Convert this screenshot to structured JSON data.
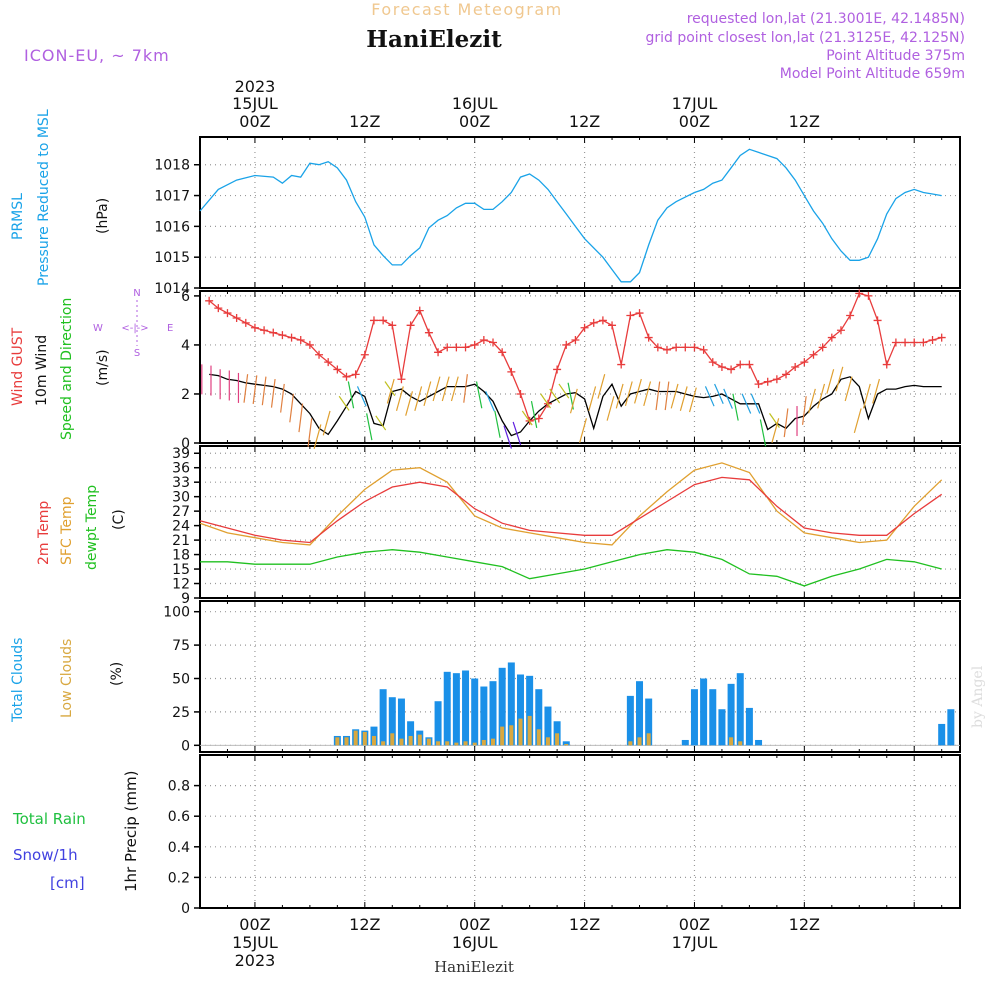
{
  "header": {
    "title": "Forecast Meteogram",
    "station": "HaniElezit",
    "model": "ICON-EU, ~ 7km",
    "requested": "requested lon,lat (21.3001E, 42.1485N)",
    "grid_point": "grid point closest lon,lat (21.3125E, 42.125N)",
    "point_altitude": "Point Altitude 375m",
    "model_altitude": "Model Point Altitude 659m",
    "footer_station": "HaniElezit",
    "watermark": "by Angel"
  },
  "time_axis": {
    "top_labels": [
      {
        "time": "00Z",
        "date": "15JUL",
        "year": "2023"
      },
      {
        "time": "12Z"
      },
      {
        "time": "00Z",
        "date": "16JUL"
      },
      {
        "time": "12Z"
      },
      {
        "time": "00Z",
        "date": "17JUL"
      },
      {
        "time": "12Z"
      }
    ],
    "bottom_labels": [
      {
        "time": "00Z",
        "date": "15JUL",
        "year": "2023"
      },
      {
        "time": "12Z"
      },
      {
        "time": "00Z",
        "date": "16JUL"
      },
      {
        "time": "12Z"
      },
      {
        "time": "00Z",
        "date": "17JUL"
      },
      {
        "time": "12Z"
      }
    ]
  },
  "panels": {
    "pressure": {
      "label1": "PRMSL",
      "label2": "Pressure Reduced to MSL",
      "unit": "(hPa)"
    },
    "wind": {
      "label_gust": "Wind GUST",
      "label_wind": "10m Wind",
      "label_dir": "Speed and Direction",
      "unit": "(m/s)",
      "compass_w": "W",
      "compass_e": "E",
      "compass_n": "N",
      "compass_s": "S",
      "compass_mid": "<-|->"
    },
    "temp": {
      "label_2m": "2m Temp",
      "label_sfc": "SFC Temp",
      "label_dew": "dewpt Temp",
      "unit": "(C)"
    },
    "clouds": {
      "label_total": "Total Clouds",
      "label_low": "Low Clouds",
      "unit": "(%)"
    },
    "precip": {
      "label_rain": "Total  Rain",
      "label_snow": "Snow/1h",
      "label_cm": "[cm]",
      "unit": "1hr Precip (mm)"
    }
  },
  "colors": {
    "pressure": "#1aa3e8",
    "gust": "#e83c3c",
    "wind": "#000000",
    "temp2m": "#e83c3c",
    "sfc": "#e0a030",
    "dew": "#20c020",
    "cloud_total": "#1a90e8",
    "cloud_low": "#d8a840",
    "title": "#f0c890",
    "purple": "#b060e0",
    "rain": "#20c040",
    "snow": "#4040e0"
  },
  "chart_data": [
    {
      "type": "line",
      "title": "PRMSL Pressure Reduced to MSL",
      "ylabel": "(hPa)",
      "x_unit": "hours since 2023-07-15 00Z",
      "ylim": [
        1014,
        1018.9
      ],
      "yticks": [
        1014,
        1015,
        1016,
        1017,
        1018
      ],
      "series": [
        {
          "name": "PRMSL",
          "x": [
            -6,
            -4,
            -2,
            0,
            2,
            3,
            4,
            5,
            6,
            7,
            8,
            9,
            10,
            11,
            12,
            13,
            14,
            15,
            16,
            17,
            18,
            19,
            20,
            21,
            22,
            23,
            24,
            25,
            26,
            27,
            28,
            29,
            30,
            31,
            32,
            33,
            34,
            35,
            36,
            38,
            39,
            40,
            41,
            42,
            43,
            44,
            45,
            46,
            47,
            48,
            49,
            50,
            51,
            52,
            53,
            54,
            55,
            56,
            57,
            58,
            59,
            60,
            61,
            62,
            63,
            64,
            65,
            66,
            67,
            68,
            69,
            70,
            71,
            72,
            73,
            74,
            75
          ],
          "values": [
            1016.5,
            1017.2,
            1017.5,
            1017.65,
            1017.6,
            1017.4,
            1017.65,
            1017.6,
            1018.05,
            1018.0,
            1018.1,
            1017.9,
            1017.5,
            1016.8,
            1016.3,
            1015.4,
            1015.05,
            1014.75,
            1014.75,
            1015.05,
            1015.3,
            1015.95,
            1016.2,
            1016.35,
            1016.6,
            1016.75,
            1016.75,
            1016.55,
            1016.55,
            1016.8,
            1017.1,
            1017.6,
            1017.7,
            1017.5,
            1017.2,
            1016.8,
            1016.4,
            1016.0,
            1015.6,
            1015.0,
            1014.6,
            1014.2,
            1014.2,
            1014.5,
            1015.4,
            1016.2,
            1016.6,
            1016.8,
            1016.95,
            1017.1,
            1017.2,
            1017.4,
            1017.5,
            1017.9,
            1018.3,
            1018.5,
            1018.4,
            1018.3,
            1018.2,
            1017.9,
            1017.5,
            1017.0,
            1016.5,
            1016.1,
            1015.6,
            1015.2,
            1014.9,
            1014.9,
            1015.0,
            1015.6,
            1016.4,
            1016.9,
            1017.1,
            1017.2,
            1017.1,
            1017.05,
            1017.0
          ]
        }
      ]
    },
    {
      "type": "line",
      "title": "Wind GUST / 10m Wind Speed and Direction",
      "ylabel": "(m/s)",
      "x_unit": "hours since 2023-07-15 00Z",
      "ylim": [
        0,
        6.2
      ],
      "yticks": [
        0,
        2,
        4,
        6
      ],
      "series": [
        {
          "name": "Wind GUST",
          "x": [
            -5,
            -4,
            -3,
            -2,
            -1,
            0,
            1,
            2,
            3,
            4,
            5,
            6,
            7,
            8,
            9,
            10,
            11,
            12,
            13,
            14,
            15,
            16,
            17,
            18,
            19,
            20,
            21,
            22,
            23,
            24,
            25,
            26,
            27,
            28,
            29,
            30,
            31,
            32,
            33,
            34,
            35,
            36,
            37,
            38,
            39,
            40,
            41,
            42,
            43,
            44,
            45,
            46,
            47,
            48,
            49,
            50,
            51,
            52,
            53,
            54,
            55,
            56,
            57,
            58,
            59,
            60,
            61,
            62,
            63,
            64,
            65,
            66,
            67,
            68,
            69,
            70,
            71,
            72,
            73,
            74,
            75
          ],
          "values": [
            5.8,
            5.5,
            5.3,
            5.1,
            4.9,
            4.7,
            4.6,
            4.5,
            4.4,
            4.3,
            4.2,
            4.0,
            3.6,
            3.3,
            3.0,
            2.7,
            2.8,
            3.6,
            5.0,
            5.0,
            4.8,
            2.6,
            4.8,
            5.4,
            4.5,
            3.7,
            3.9,
            3.9,
            3.9,
            4.0,
            4.2,
            4.1,
            3.7,
            2.9,
            2.0,
            0.9,
            1.0,
            1.6,
            3.0,
            4.0,
            4.2,
            4.7,
            4.9,
            5.0,
            4.8,
            3.2,
            5.2,
            5.3,
            4.3,
            3.9,
            3.8,
            3.9,
            3.9,
            3.9,
            3.8,
            3.3,
            3.1,
            3.0,
            3.2,
            3.2,
            2.4,
            2.5,
            2.6,
            2.8,
            3.1,
            3.3,
            3.6,
            3.9,
            4.3,
            4.6,
            5.2,
            6.1,
            6.0,
            5.0,
            3.2,
            4.1,
            4.1,
            4.1,
            4.1,
            4.2,
            4.3
          ]
        },
        {
          "name": "10m Wind",
          "x": [
            -5,
            -4,
            -3,
            -2,
            -1,
            0,
            1,
            2,
            3,
            4,
            5,
            6,
            7,
            8,
            9,
            10,
            11,
            12,
            13,
            14,
            15,
            16,
            17,
            18,
            19,
            20,
            21,
            22,
            23,
            24,
            25,
            26,
            27,
            28,
            29,
            30,
            31,
            32,
            33,
            34,
            35,
            36,
            37,
            38,
            39,
            40,
            41,
            42,
            43,
            44,
            45,
            46,
            47,
            48,
            49,
            50,
            51,
            52,
            53,
            54,
            55,
            56,
            57,
            58,
            59,
            60,
            61,
            62,
            63,
            64,
            65,
            66,
            67,
            68,
            69,
            70,
            71,
            72,
            73,
            74,
            75
          ],
          "values": [
            2.8,
            2.75,
            2.6,
            2.55,
            2.45,
            2.4,
            2.35,
            2.3,
            2.2,
            2.0,
            1.6,
            1.2,
            0.6,
            0.35,
            0.9,
            1.5,
            2.1,
            1.9,
            0.8,
            0.7,
            2.1,
            2.2,
            1.9,
            1.7,
            1.9,
            2.1,
            2.3,
            2.3,
            2.3,
            2.4,
            2.1,
            1.7,
            0.9,
            0.3,
            0.45,
            0.9,
            1.3,
            1.6,
            1.8,
            2.0,
            2.05,
            1.8,
            0.6,
            1.9,
            2.4,
            1.5,
            2.0,
            2.1,
            2.2,
            2.1,
            2.1,
            2.1,
            2.0,
            1.9,
            1.85,
            1.9,
            2.0,
            1.8,
            1.6,
            1.6,
            1.6,
            0.55,
            0.8,
            0.6,
            1.0,
            1.1,
            1.5,
            1.8,
            2.0,
            2.6,
            2.7,
            2.3,
            1.0,
            2.0,
            2.2,
            2.2,
            2.3,
            2.35,
            2.3,
            2.3,
            2.3
          ]
        }
      ]
    },
    {
      "type": "line",
      "title": "2m Temp / SFC Temp / dewpt Temp",
      "ylabel": "(C)",
      "x_unit": "hours since 2023-07-15 00Z",
      "ylim": [
        9,
        40.5
      ],
      "yticks": [
        9,
        12,
        15,
        18,
        21,
        24,
        27,
        30,
        33,
        36,
        39
      ],
      "series": [
        {
          "name": "2m Temp",
          "x": [
            -6,
            -3,
            0,
            3,
            6,
            9,
            12,
            15,
            18,
            21,
            24,
            27,
            30,
            33,
            36,
            39,
            42,
            45,
            48,
            51,
            54,
            57,
            60,
            63,
            66,
            69,
            72,
            75
          ],
          "values": [
            25.0,
            23.5,
            22.0,
            21.0,
            20.5,
            25.0,
            29.0,
            32.0,
            33.0,
            32.0,
            27.5,
            24.5,
            23.0,
            22.5,
            22.0,
            22.0,
            25.5,
            29.0,
            32.5,
            34.0,
            33.5,
            28.0,
            23.5,
            22.5,
            22.0,
            22.0,
            26.5,
            30.5
          ]
        },
        {
          "name": "SFC Temp",
          "x": [
            -6,
            -3,
            0,
            3,
            6,
            9,
            12,
            15,
            18,
            21,
            24,
            27,
            30,
            33,
            36,
            39,
            42,
            45,
            48,
            51,
            54,
            57,
            60,
            63,
            66,
            69,
            72,
            75
          ],
          "values": [
            24.5,
            22.5,
            21.5,
            20.5,
            20.0,
            26.0,
            31.5,
            35.5,
            36.0,
            33.0,
            26.0,
            23.5,
            22.5,
            21.5,
            20.5,
            20.0,
            26.0,
            31.0,
            35.5,
            37.0,
            35.0,
            27.0,
            22.5,
            21.5,
            20.5,
            21.0,
            28.0,
            33.5
          ]
        },
        {
          "name": "dewpt Temp",
          "x": [
            -6,
            -3,
            0,
            3,
            6,
            9,
            12,
            15,
            18,
            21,
            24,
            27,
            30,
            33,
            36,
            39,
            42,
            45,
            48,
            51,
            54,
            57,
            60,
            63,
            66,
            69,
            72,
            75
          ],
          "values": [
            16.5,
            16.5,
            16.0,
            16.0,
            16.0,
            17.5,
            18.5,
            19.0,
            18.5,
            17.5,
            16.5,
            15.5,
            13.0,
            14.0,
            15.0,
            16.5,
            18.0,
            19.0,
            18.5,
            17.0,
            14.0,
            13.5,
            11.5,
            13.5,
            15.0,
            17.0,
            16.5,
            15.0
          ]
        }
      ]
    },
    {
      "type": "bar",
      "title": "Total Clouds / Low Clouds",
      "ylabel": "(%)",
      "x_unit": "hours since 2023-07-15 00Z",
      "ylim": [
        -5,
        108
      ],
      "yticks": [
        0,
        25,
        50,
        75,
        100
      ],
      "series": [
        {
          "name": "Total Clouds",
          "x": [
            9,
            10,
            11,
            12,
            13,
            14,
            15,
            16,
            17,
            18,
            19,
            20,
            21,
            22,
            23,
            24,
            25,
            26,
            27,
            28,
            29,
            30,
            31,
            32,
            33,
            34,
            35,
            36,
            41,
            42,
            43,
            47,
            48,
            49,
            50,
            51,
            52,
            53,
            54,
            55,
            56,
            57,
            75,
            76
          ],
          "values": [
            7,
            7,
            12,
            11,
            14,
            42,
            36,
            35,
            18,
            11,
            6,
            33,
            55,
            54,
            56,
            50,
            44,
            48,
            58,
            62,
            53,
            52,
            42,
            29,
            18,
            3,
            0,
            0,
            37,
            48,
            35,
            4,
            42,
            50,
            42,
            27,
            46,
            54,
            28,
            4,
            0,
            0,
            16,
            27
          ]
        },
        {
          "name": "Low Clouds",
          "x": [
            9,
            10,
            11,
            12,
            13,
            14,
            15,
            16,
            17,
            18,
            19,
            20,
            21,
            22,
            23,
            24,
            25,
            26,
            27,
            28,
            29,
            30,
            31,
            32,
            33,
            34,
            35,
            36,
            41,
            42,
            43,
            47,
            48,
            49,
            50,
            51,
            52,
            53,
            54,
            55,
            56,
            57,
            75,
            76
          ],
          "values": [
            6,
            6,
            11,
            10,
            7,
            3,
            9,
            5,
            7,
            8,
            5,
            3,
            3,
            2,
            3,
            2,
            4,
            5,
            14,
            15,
            20,
            22,
            12,
            6,
            9,
            1,
            0,
            0,
            3,
            6,
            9,
            0,
            0,
            0,
            0,
            0,
            6,
            3,
            0,
            0,
            0,
            0,
            0,
            0
          ]
        }
      ]
    },
    {
      "type": "bar",
      "title": "Total Rain / Snow 1hr Precip",
      "ylabel": "1hr Precip (mm)",
      "x_unit": "hours since 2023-07-15 00Z",
      "ylim": [
        0,
        1.0
      ],
      "yticks": [
        0,
        0.2,
        0.4,
        0.6,
        0.8
      ],
      "series": [
        {
          "name": "Total Rain",
          "x": [],
          "values": []
        },
        {
          "name": "Snow/1h",
          "x": [],
          "values": []
        }
      ]
    }
  ]
}
